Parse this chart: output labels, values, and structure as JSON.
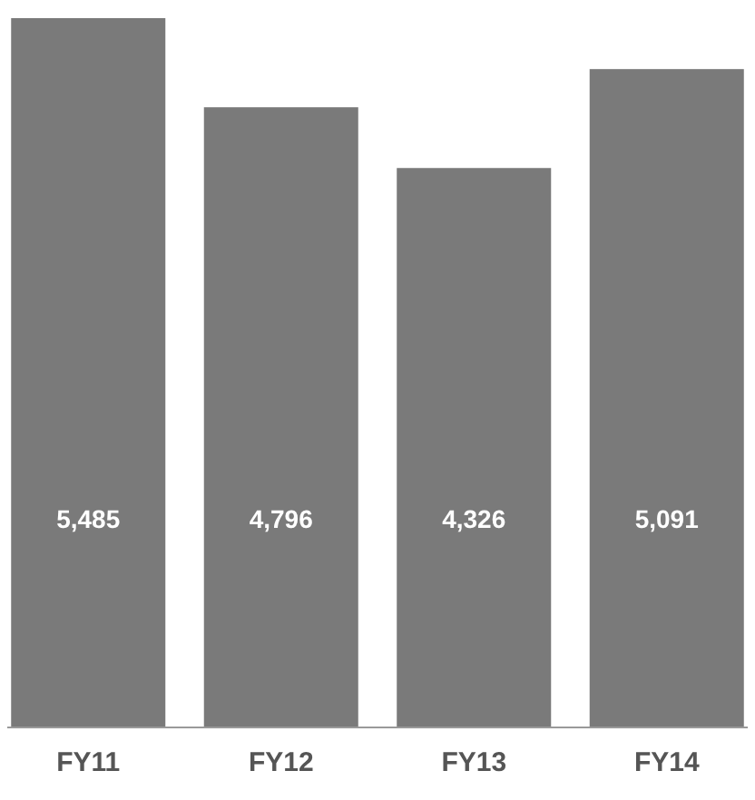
{
  "chart_data": {
    "type": "bar",
    "categories": [
      "FY11",
      "FY12",
      "FY13",
      "FY14"
    ],
    "values": [
      5485,
      4796,
      4326,
      5091
    ],
    "value_labels": [
      "5,485",
      "4,796",
      "4,326",
      "5,091"
    ],
    "color": "#7a7a7a"
  }
}
